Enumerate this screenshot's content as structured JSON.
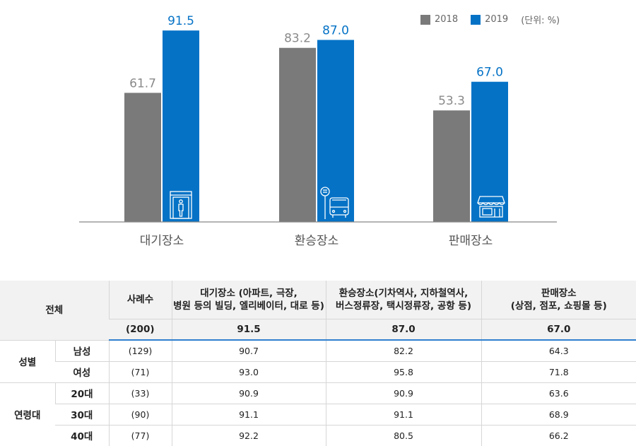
{
  "legend": {
    "items": [
      {
        "label": "2018",
        "color": "#7a7a7a"
      },
      {
        "label": "2019",
        "color": "#0572c6"
      }
    ],
    "unit": "(단위: %)"
  },
  "chart_data": {
    "type": "bar",
    "categories": [
      "대기장소",
      "환승장소",
      "판매장소"
    ],
    "series": [
      {
        "name": "2018",
        "values": [
          61.7,
          83.2,
          53.3
        ]
      },
      {
        "name": "2019",
        "values": [
          91.5,
          87.0,
          67.0
        ]
      }
    ],
    "ylim": [
      0,
      100
    ],
    "grid": false,
    "legend_position": "top-right"
  },
  "table": {
    "header": {
      "group_label": "전체",
      "sample_label": "사례수",
      "col1": [
        "대기장소 (아파트, 극장,",
        "병원 등의 빌딩, 엘리베이터, 대로 등)"
      ],
      "col2": [
        "환승장소(기차역사, 지하철역사,",
        "버스정류장, 택시정류장, 공항 등)"
      ],
      "col3": [
        "판매장소",
        "(상점, 점포, 쇼핑몰 등)"
      ],
      "total": {
        "n": "(200)",
        "v1": "91.5",
        "v2": "87.0",
        "v3": "67.0"
      }
    },
    "groups": [
      {
        "label": "성별",
        "rows": [
          {
            "label": "남성",
            "n": "(129)",
            "v1": "90.7",
            "v2": "82.2",
            "v3": "64.3"
          },
          {
            "label": "여성",
            "n": "(71)",
            "v1": "93.0",
            "v2": "95.8",
            "v3": "71.8"
          }
        ]
      },
      {
        "label": "연령대",
        "rows": [
          {
            "label": "20대",
            "n": "(33)",
            "v1": "90.9",
            "v2": "90.9",
            "v3": "63.6"
          },
          {
            "label": "30대",
            "n": "(90)",
            "v1": "91.1",
            "v2": "91.1",
            "v3": "68.9"
          },
          {
            "label": "40대",
            "n": "(77)",
            "v1": "92.2",
            "v2": "80.5",
            "v3": "66.2"
          }
        ]
      }
    ]
  }
}
